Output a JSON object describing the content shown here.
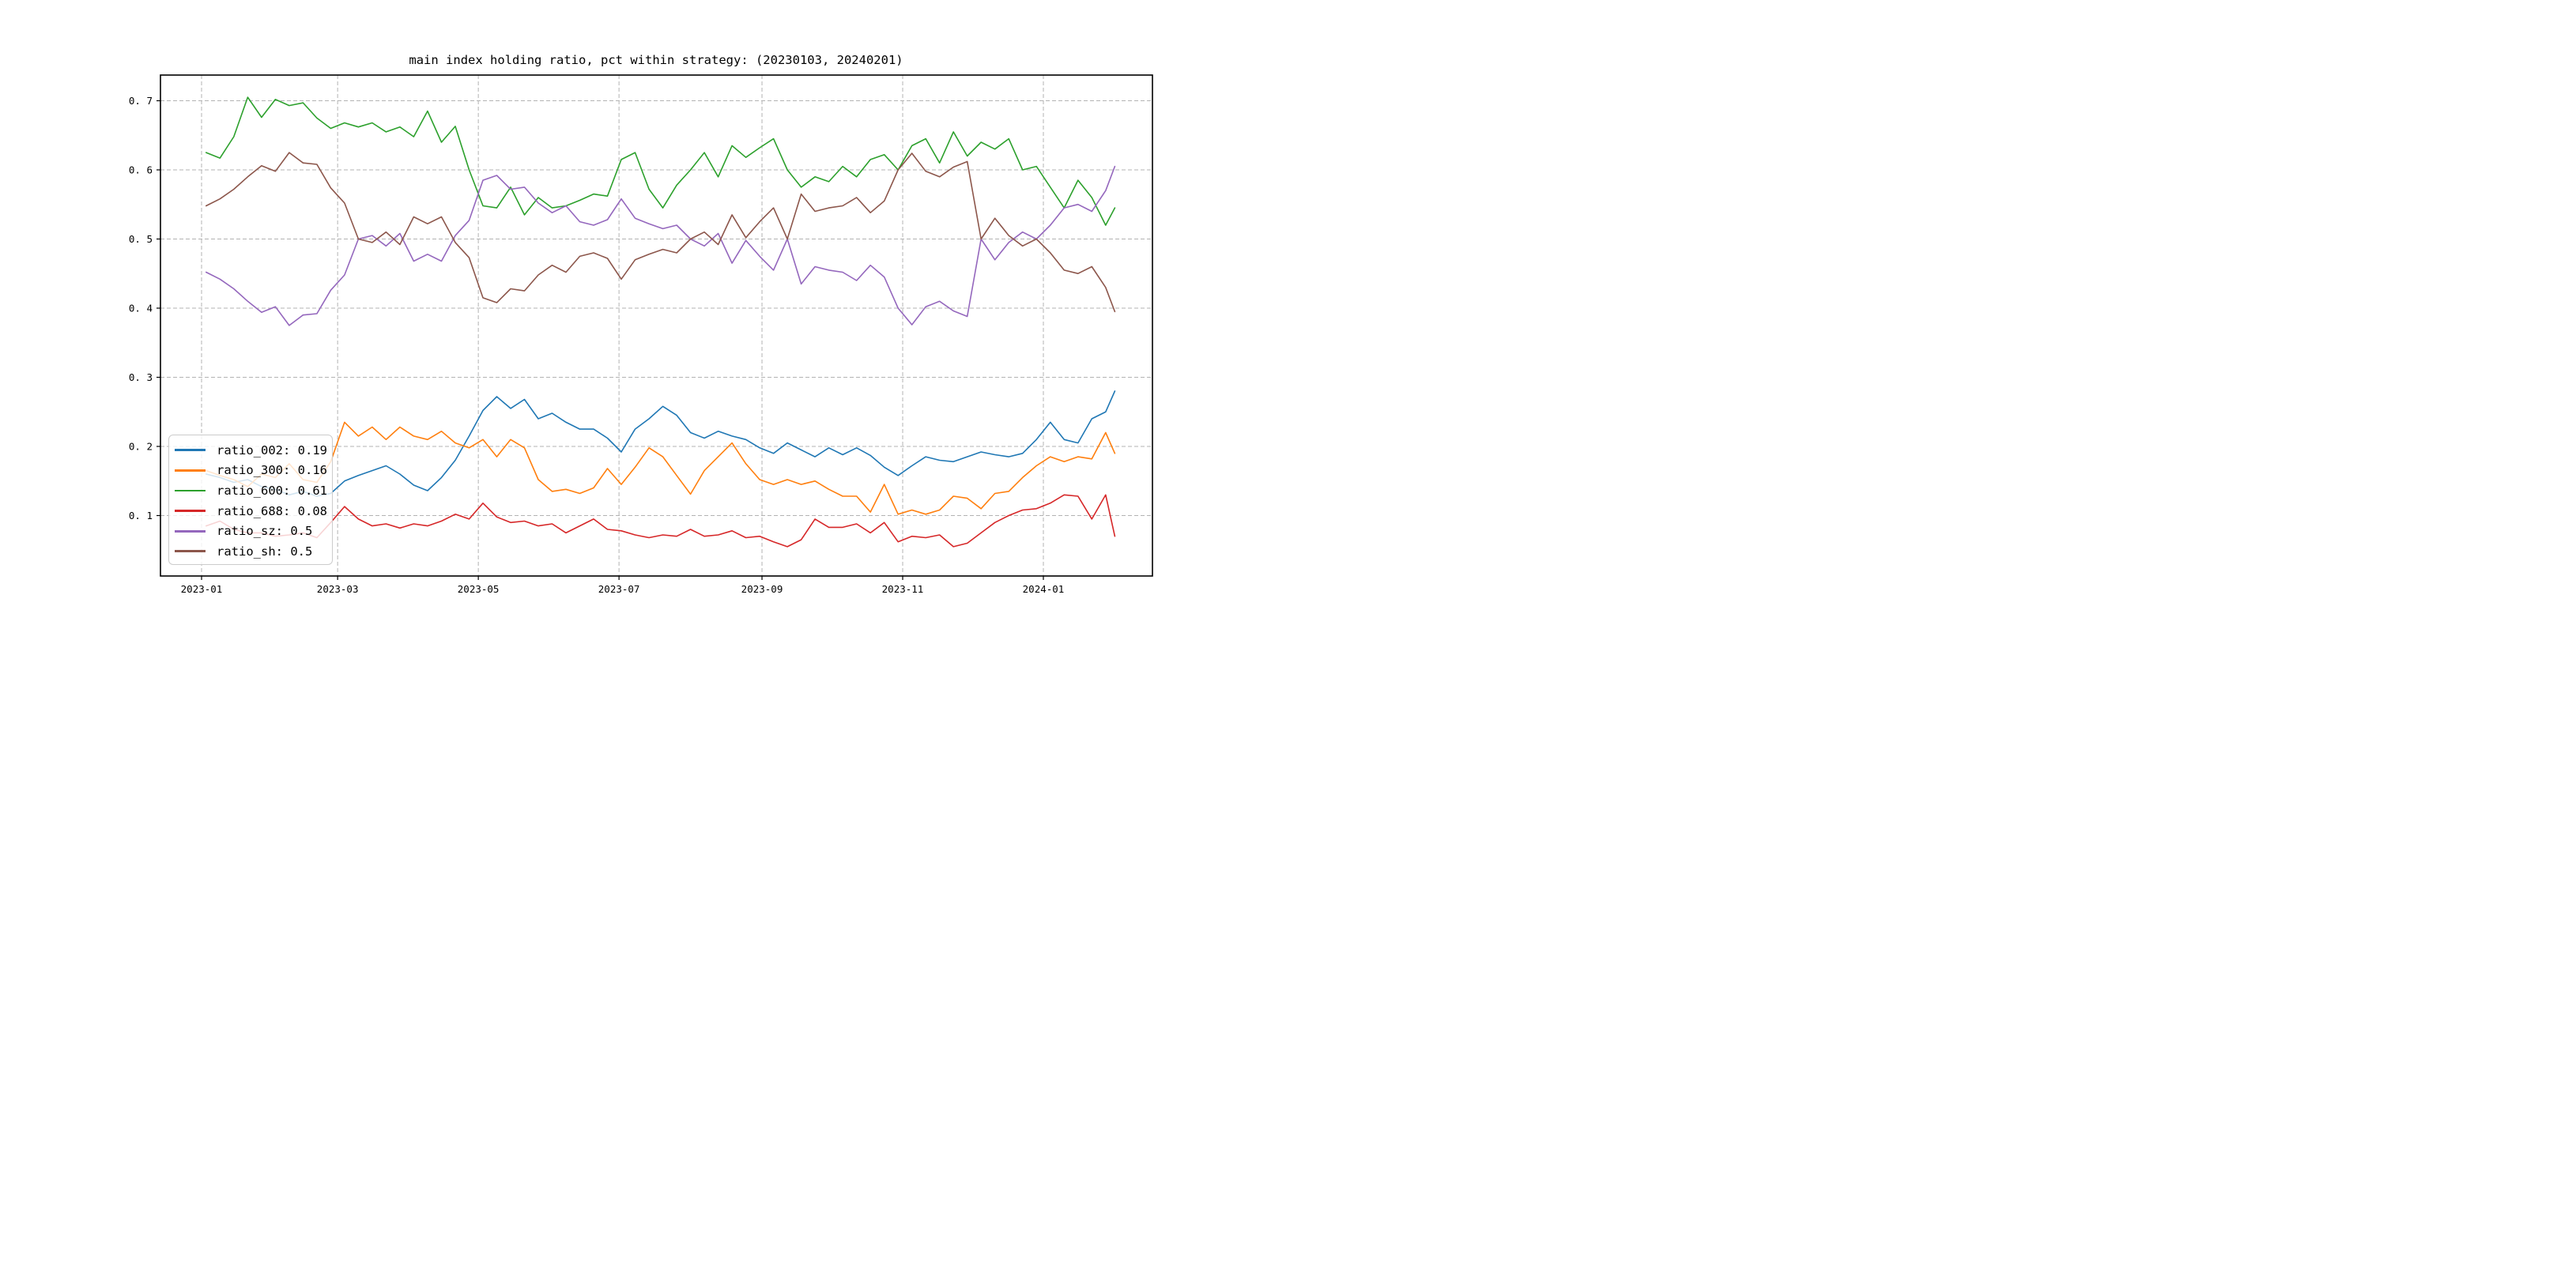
{
  "title": "main index holding ratio, pct within strategy: (20230103, 20240201)",
  "chart_data": {
    "type": "line",
    "title": "main index holding ratio, pct within strategy: (20230103, 20240201)",
    "xlabel": "",
    "ylabel": "",
    "grid": true,
    "grid_style": "dashed",
    "grid_color": "#b3b3b3",
    "spine_color": "#000000",
    "background_color": "#ffffff",
    "legend_position": "lower left",
    "x_unit": "days since 2023-01-01",
    "xlim_days": [
      -17.8,
      412.5
    ],
    "ylim": [
      0.013,
      0.737
    ],
    "x_ticks": [
      {
        "day": 0,
        "label": "2023-01"
      },
      {
        "day": 59,
        "label": "2023-03"
      },
      {
        "day": 120,
        "label": "2023-05"
      },
      {
        "day": 181,
        "label": "2023-07"
      },
      {
        "day": 243,
        "label": "2023-09"
      },
      {
        "day": 304,
        "label": "2023-11"
      },
      {
        "day": 365,
        "label": "2024-01"
      }
    ],
    "y_ticks": [
      {
        "value": 0.1,
        "label": "0. 1"
      },
      {
        "value": 0.2,
        "label": "0. 2"
      },
      {
        "value": 0.3,
        "label": "0. 3"
      },
      {
        "value": 0.4,
        "label": "0. 4"
      },
      {
        "value": 0.5,
        "label": "0. 5"
      },
      {
        "value": 0.6,
        "label": "0. 6"
      },
      {
        "value": 0.7,
        "label": "0. 7"
      }
    ],
    "x_days": [
      2,
      8,
      14,
      20,
      26,
      32,
      38,
      44,
      50,
      56,
      62,
      68,
      74,
      80,
      86,
      92,
      98,
      104,
      110,
      116,
      122,
      128,
      134,
      140,
      146,
      152,
      158,
      164,
      170,
      176,
      182,
      188,
      194,
      200,
      206,
      212,
      218,
      224,
      230,
      236,
      242,
      248,
      254,
      260,
      266,
      272,
      278,
      284,
      290,
      296,
      302,
      308,
      314,
      320,
      326,
      332,
      338,
      344,
      350,
      356,
      362,
      368,
      374,
      380,
      386,
      392,
      396
    ],
    "series": [
      {
        "name": "ratio_002",
        "legend_label": "ratio_002: 0.19",
        "color": "#1f77b4",
        "values": [
          0.16,
          0.155,
          0.148,
          0.152,
          0.142,
          0.138,
          0.13,
          0.135,
          0.128,
          0.132,
          0.15,
          0.158,
          0.165,
          0.172,
          0.16,
          0.144,
          0.136,
          0.155,
          0.18,
          0.215,
          0.252,
          0.272,
          0.255,
          0.268,
          0.24,
          0.248,
          0.235,
          0.225,
          0.225,
          0.212,
          0.192,
          0.225,
          0.24,
          0.258,
          0.245,
          0.22,
          0.212,
          0.222,
          0.215,
          0.21,
          0.198,
          0.19,
          0.205,
          0.195,
          0.185,
          0.198,
          0.188,
          0.198,
          0.187,
          0.17,
          0.158,
          0.172,
          0.185,
          0.18,
          0.178,
          0.185,
          0.192,
          0.188,
          0.185,
          0.19,
          0.21,
          0.235,
          0.21,
          0.205,
          0.24,
          0.25,
          0.28
        ]
      },
      {
        "name": "ratio_300",
        "legend_label": "ratio_300: 0.16",
        "color": "#ff7f0e",
        "values": [
          0.165,
          0.158,
          0.152,
          0.142,
          0.16,
          0.155,
          0.175,
          0.152,
          0.148,
          0.178,
          0.235,
          0.215,
          0.228,
          0.21,
          0.228,
          0.215,
          0.21,
          0.222,
          0.205,
          0.198,
          0.21,
          0.185,
          0.21,
          0.198,
          0.152,
          0.135,
          0.138,
          0.132,
          0.14,
          0.168,
          0.145,
          0.17,
          0.198,
          0.185,
          0.158,
          0.131,
          0.165,
          0.185,
          0.205,
          0.175,
          0.152,
          0.145,
          0.152,
          0.145,
          0.15,
          0.138,
          0.128,
          0.128,
          0.105,
          0.145,
          0.102,
          0.108,
          0.102,
          0.108,
          0.128,
          0.125,
          0.11,
          0.132,
          0.135,
          0.155,
          0.172,
          0.185,
          0.178,
          0.185,
          0.182,
          0.22,
          0.19
        ]
      },
      {
        "name": "ratio_600",
        "legend_label": "ratio_600: 0.61",
        "color": "#2ca02c",
        "values": [
          0.625,
          0.617,
          0.648,
          0.705,
          0.676,
          0.702,
          0.693,
          0.697,
          0.675,
          0.66,
          0.668,
          0.662,
          0.668,
          0.655,
          0.662,
          0.648,
          0.685,
          0.64,
          0.663,
          0.6,
          0.548,
          0.545,
          0.575,
          0.535,
          0.56,
          0.545,
          0.548,
          0.556,
          0.565,
          0.562,
          0.615,
          0.625,
          0.572,
          0.545,
          0.578,
          0.6,
          0.625,
          0.59,
          0.635,
          0.618,
          0.632,
          0.645,
          0.6,
          0.575,
          0.59,
          0.583,
          0.605,
          0.59,
          0.615,
          0.622,
          0.6,
          0.635,
          0.645,
          0.61,
          0.655,
          0.62,
          0.64,
          0.63,
          0.645,
          0.6,
          0.605,
          0.575,
          0.545,
          0.585,
          0.56,
          0.52,
          0.545
        ]
      },
      {
        "name": "ratio_688",
        "legend_label": "ratio_688: 0.08",
        "color": "#d62728",
        "values": [
          0.085,
          0.092,
          0.08,
          0.075,
          0.075,
          0.07,
          0.072,
          0.075,
          0.068,
          0.09,
          0.113,
          0.095,
          0.085,
          0.088,
          0.082,
          0.088,
          0.085,
          0.092,
          0.102,
          0.095,
          0.118,
          0.098,
          0.09,
          0.092,
          0.085,
          0.088,
          0.075,
          0.085,
          0.095,
          0.08,
          0.078,
          0.072,
          0.068,
          0.072,
          0.07,
          0.08,
          0.07,
          0.072,
          0.078,
          0.068,
          0.07,
          0.062,
          0.055,
          0.065,
          0.095,
          0.083,
          0.083,
          0.088,
          0.075,
          0.09,
          0.062,
          0.07,
          0.068,
          0.072,
          0.055,
          0.06,
          0.075,
          0.09,
          0.1,
          0.108,
          0.11,
          0.118,
          0.13,
          0.128,
          0.095,
          0.13,
          0.07
        ]
      },
      {
        "name": "ratio_sz",
        "legend_label": "ratio_sz: 0.5",
        "color": "#9467bd",
        "values": [
          0.452,
          0.442,
          0.428,
          0.41,
          0.394,
          0.402,
          0.375,
          0.39,
          0.392,
          0.426,
          0.448,
          0.5,
          0.505,
          0.49,
          0.508,
          0.468,
          0.478,
          0.468,
          0.505,
          0.527,
          0.585,
          0.592,
          0.572,
          0.575,
          0.552,
          0.538,
          0.548,
          0.525,
          0.52,
          0.528,
          0.558,
          0.53,
          0.522,
          0.515,
          0.52,
          0.5,
          0.49,
          0.508,
          0.465,
          0.498,
          0.475,
          0.455,
          0.5,
          0.435,
          0.46,
          0.455,
          0.452,
          0.44,
          0.462,
          0.445,
          0.4,
          0.376,
          0.402,
          0.41,
          0.396,
          0.388,
          0.5,
          0.47,
          0.495,
          0.51,
          0.5,
          0.52,
          0.545,
          0.55,
          0.54,
          0.57,
          0.605
        ]
      },
      {
        "name": "ratio_sh",
        "legend_label": "ratio_sh: 0.5",
        "color": "#8c564b",
        "values": [
          0.548,
          0.558,
          0.572,
          0.59,
          0.606,
          0.598,
          0.625,
          0.61,
          0.608,
          0.574,
          0.552,
          0.5,
          0.495,
          0.51,
          0.492,
          0.532,
          0.522,
          0.532,
          0.495,
          0.473,
          0.415,
          0.408,
          0.428,
          0.425,
          0.448,
          0.462,
          0.452,
          0.475,
          0.48,
          0.472,
          0.442,
          0.47,
          0.478,
          0.485,
          0.48,
          0.5,
          0.51,
          0.492,
          0.535,
          0.502,
          0.525,
          0.545,
          0.5,
          0.565,
          0.54,
          0.545,
          0.548,
          0.56,
          0.538,
          0.555,
          0.6,
          0.624,
          0.598,
          0.59,
          0.604,
          0.612,
          0.5,
          0.53,
          0.505,
          0.49,
          0.5,
          0.48,
          0.455,
          0.45,
          0.46,
          0.43,
          0.395
        ]
      }
    ]
  }
}
